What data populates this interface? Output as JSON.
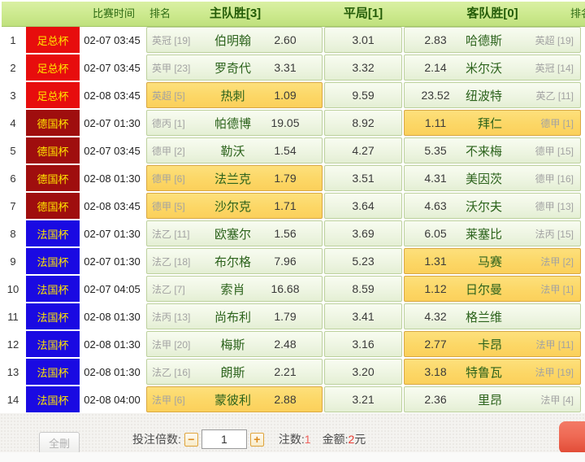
{
  "header": {
    "col_time": "比赛时间",
    "col_rank_home": "排名",
    "col_home": "主队胜[3]",
    "col_draw": "平局[1]",
    "col_away": "客队胜[0]",
    "col_rank_away": "排名"
  },
  "league_colors": {
    "足总杯": "#e70d0d",
    "德国杯": "#9f0e0e",
    "法国杯": "#1a0ae2"
  },
  "rows": [
    {
      "num": "1",
      "league": "足总杯",
      "time": "02-07 03:45",
      "home_rank": "英冠 [19]",
      "home_team": "伯明翰",
      "home_odds": "2.60",
      "draw_odds": "3.01",
      "away_odds": "2.83",
      "away_team": "哈德斯",
      "away_rank": "英超 [19]",
      "selected": ""
    },
    {
      "num": "2",
      "league": "足总杯",
      "time": "02-07 03:45",
      "home_rank": "英甲 [23]",
      "home_team": "罗奇代",
      "home_odds": "3.31",
      "draw_odds": "3.32",
      "away_odds": "2.14",
      "away_team": "米尔沃",
      "away_rank": "英冠 [14]",
      "selected": ""
    },
    {
      "num": "3",
      "league": "足总杯",
      "time": "02-08 03:45",
      "home_rank": "英超 [5]",
      "home_team": "热刺",
      "home_odds": "1.09",
      "draw_odds": "9.59",
      "away_odds": "23.52",
      "away_team": "纽波特",
      "away_rank": "英乙 [11]",
      "selected": "home"
    },
    {
      "num": "4",
      "league": "德国杯",
      "time": "02-07 01:30",
      "home_rank": "德丙 [1]",
      "home_team": "帕德博",
      "home_odds": "19.05",
      "draw_odds": "8.92",
      "away_odds": "1.11",
      "away_team": "拜仁",
      "away_rank": "德甲 [1]",
      "selected": "away"
    },
    {
      "num": "5",
      "league": "德国杯",
      "time": "02-07 03:45",
      "home_rank": "德甲 [2]",
      "home_team": "勒沃",
      "home_odds": "1.54",
      "draw_odds": "4.27",
      "away_odds": "5.35",
      "away_team": "不来梅",
      "away_rank": "德甲 [15]",
      "selected": ""
    },
    {
      "num": "6",
      "league": "德国杯",
      "time": "02-08 01:30",
      "home_rank": "德甲 [6]",
      "home_team": "法兰克",
      "home_odds": "1.79",
      "draw_odds": "3.51",
      "away_odds": "4.31",
      "away_team": "美因茨",
      "away_rank": "德甲 [16]",
      "selected": "home"
    },
    {
      "num": "7",
      "league": "德国杯",
      "time": "02-08 03:45",
      "home_rank": "德甲 [5]",
      "home_team": "沙尔克",
      "home_odds": "1.71",
      "draw_odds": "3.64",
      "away_odds": "4.63",
      "away_team": "沃尔夫",
      "away_rank": "德甲 [13]",
      "selected": "home"
    },
    {
      "num": "8",
      "league": "法国杯",
      "time": "02-07 01:30",
      "home_rank": "法乙 [11]",
      "home_team": "欧塞尔",
      "home_odds": "1.56",
      "draw_odds": "3.69",
      "away_odds": "6.05",
      "away_team": "莱塞比",
      "away_rank": "法丙 [15]",
      "selected": ""
    },
    {
      "num": "9",
      "league": "法国杯",
      "time": "02-07 01:30",
      "home_rank": "法乙 [18]",
      "home_team": "布尔格",
      "home_odds": "7.96",
      "draw_odds": "5.23",
      "away_odds": "1.31",
      "away_team": "马赛",
      "away_rank": "法甲 [2]",
      "selected": "away"
    },
    {
      "num": "10",
      "league": "法国杯",
      "time": "02-07 04:05",
      "home_rank": "法乙 [7]",
      "home_team": "索肖",
      "home_odds": "16.68",
      "draw_odds": "8.59",
      "away_odds": "1.12",
      "away_team": "日尔曼",
      "away_rank": "法甲 [1]",
      "selected": "away"
    },
    {
      "num": "11",
      "league": "法国杯",
      "time": "02-08 01:30",
      "home_rank": "法丙 [13]",
      "home_team": "尚布利",
      "home_odds": "1.79",
      "draw_odds": "3.41",
      "away_odds": "4.32",
      "away_team": "格兰维",
      "away_rank": "",
      "selected": ""
    },
    {
      "num": "12",
      "league": "法国杯",
      "time": "02-08 01:30",
      "home_rank": "法甲 [20]",
      "home_team": "梅斯",
      "home_odds": "2.48",
      "draw_odds": "3.16",
      "away_odds": "2.77",
      "away_team": "卡昂",
      "away_rank": "法甲 [11]",
      "selected": "away"
    },
    {
      "num": "13",
      "league": "法国杯",
      "time": "02-08 01:30",
      "home_rank": "法乙 [16]",
      "home_team": "朗斯",
      "home_odds": "2.21",
      "draw_odds": "3.20",
      "away_odds": "3.18",
      "away_team": "特鲁瓦",
      "away_rank": "法甲 [19]",
      "selected": "away"
    },
    {
      "num": "14",
      "league": "法国杯",
      "time": "02-08 04:00",
      "home_rank": "法甲 [6]",
      "home_team": "蒙彼利",
      "home_odds": "2.88",
      "draw_odds": "3.21",
      "away_odds": "2.36",
      "away_team": "里昂",
      "away_rank": "法甲 [4]",
      "selected": "home"
    }
  ],
  "footer": {
    "delete_all": "全刪",
    "multiplier_label": "投注倍数:",
    "minus": "−",
    "multiplier_value": "1",
    "plus": "+",
    "bets_label": "注数:",
    "bets_value": "1",
    "amount_label": "金额:",
    "amount_value": "2",
    "amount_unit": "元"
  }
}
